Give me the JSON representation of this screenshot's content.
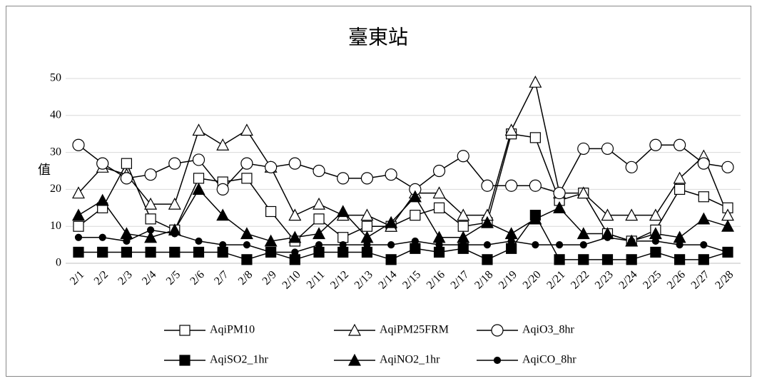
{
  "chart_data": {
    "type": "line",
    "title": "臺東站",
    "y_label": "值",
    "categories": [
      "2/1",
      "2/2",
      "2/3",
      "2/4",
      "2/5",
      "2/6",
      "2/7",
      "2/8",
      "2/9",
      "2/10",
      "2/11",
      "2/12",
      "2/13",
      "2/14",
      "2/15",
      "2/16",
      "2/17",
      "2/18",
      "2/19",
      "2/20",
      "2/21",
      "2/22",
      "2/23",
      "2/24",
      "2/25",
      "2/26",
      "2/27",
      "2/28"
    ],
    "ylim": [
      0,
      50
    ],
    "yticks": [
      0,
      10,
      20,
      30,
      40,
      50
    ],
    "grid": true,
    "series": [
      {
        "name": "AqiPM10",
        "color": "#000000",
        "marker": "square",
        "marker_fill": "#ffffff",
        "values": [
          10,
          15,
          27,
          12,
          9,
          23,
          22,
          23,
          14,
          6,
          12,
          7,
          10,
          10,
          13,
          15,
          10,
          11,
          35,
          34,
          17,
          19,
          8,
          6,
          9,
          20,
          18,
          15
        ]
      },
      {
        "name": "AqiPM25FRM",
        "color": "#000000",
        "marker": "triangle",
        "marker_fill": "#ffffff",
        "values": [
          19,
          26,
          24,
          16,
          16,
          36,
          32,
          36,
          26,
          13,
          16,
          13,
          13,
          10,
          19,
          19,
          13,
          13,
          36,
          49,
          19,
          19,
          13,
          13,
          13,
          23,
          29,
          13
        ]
      },
      {
        "name": "AqiO3_8hr",
        "color": "#000000",
        "marker": "circle",
        "marker_fill": "#ffffff",
        "values": [
          32,
          27,
          23,
          24,
          27,
          28,
          20,
          27,
          26,
          27,
          25,
          23,
          23,
          24,
          20,
          25,
          29,
          21,
          21,
          21,
          19,
          31,
          31,
          26,
          32,
          32,
          27,
          26
        ]
      },
      {
        "name": "AqiSO2_1hr",
        "color": "#000000",
        "marker": "square",
        "marker_fill": "#000000",
        "values": [
          3,
          3,
          3,
          3,
          3,
          3,
          3,
          1,
          3,
          1,
          3,
          3,
          3,
          1,
          4,
          3,
          4,
          1,
          4,
          13,
          1,
          1,
          1,
          1,
          3,
          1,
          1,
          3
        ]
      },
      {
        "name": "AqiNO2_1hr",
        "color": "#000000",
        "marker": "triangle",
        "marker_fill": "#000000",
        "values": [
          13,
          17,
          8,
          7,
          9,
          20,
          13,
          8,
          6,
          7,
          8,
          14,
          7,
          11,
          18,
          7,
          7,
          11,
          8,
          12,
          15,
          8,
          8,
          6,
          8,
          7,
          12,
          10
        ]
      },
      {
        "name": "AqiCO_8hr",
        "color": "#000000",
        "marker": "circle",
        "marker_fill": "#000000",
        "values": [
          7,
          7,
          6,
          9,
          8,
          6,
          5,
          5,
          3,
          3,
          5,
          5,
          5,
          5,
          6,
          5,
          5,
          5,
          6,
          5,
          5,
          5,
          7,
          6,
          6,
          5,
          5,
          3
        ]
      }
    ]
  }
}
